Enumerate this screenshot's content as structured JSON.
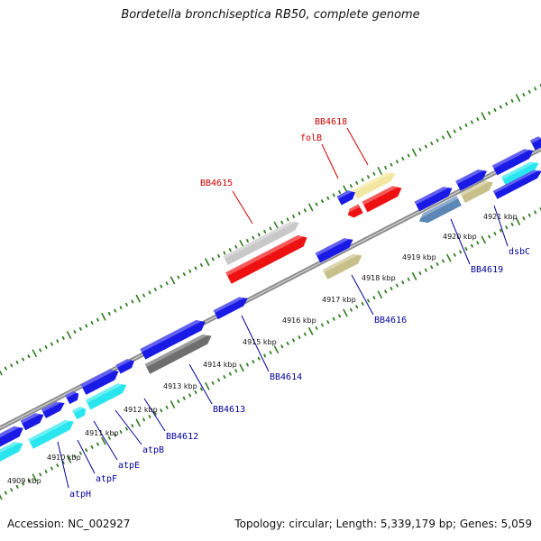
{
  "title": "Bordetella bronchiseptica RB50, complete genome",
  "footer": {
    "accession": "Accession: NC_002927",
    "summary": "Topology: circular; Length: 5,339,179 bp; Genes: 5,059"
  },
  "colors": {
    "backbone": "#8a8a8a",
    "dots": "#2f7d1f",
    "forward_gene": "#1a1ae6",
    "cyan_gene": "#29e6ee",
    "red_gene": "#ee1111",
    "grey_gene": "#c8c8c8",
    "dark_grey_gene": "#6e6e6e",
    "khaki_gene": "#c8c08a",
    "pale_yellow_gene": "#f2e6a0",
    "steel_gene": "#5b86b5",
    "label_blue": "#00009a",
    "label_red": "#cc0000"
  },
  "tick_labels": [
    "4909 kbp",
    "4910 kbp",
    "4911 kbp",
    "4912 kbp",
    "4913 kbp",
    "4914 kbp",
    "4915 kbp",
    "4916 kbp",
    "4917 kbp",
    "4918 kbp",
    "4919 kbp",
    "4920 kbp",
    "4921 kbp"
  ],
  "gene_labels": {
    "atpH": "atpH",
    "atpF": "atpF",
    "atpE": "atpE",
    "atpB": "atpB",
    "BB4612": "BB4612",
    "BB4613": "BB4613",
    "BB4614": "BB4614",
    "BB4615": "BB4615",
    "folB": "folB",
    "BB4618": "BB4618",
    "BB4616": "BB4616",
    "BB4619": "BB4619",
    "dsbC": "dsbC"
  }
}
